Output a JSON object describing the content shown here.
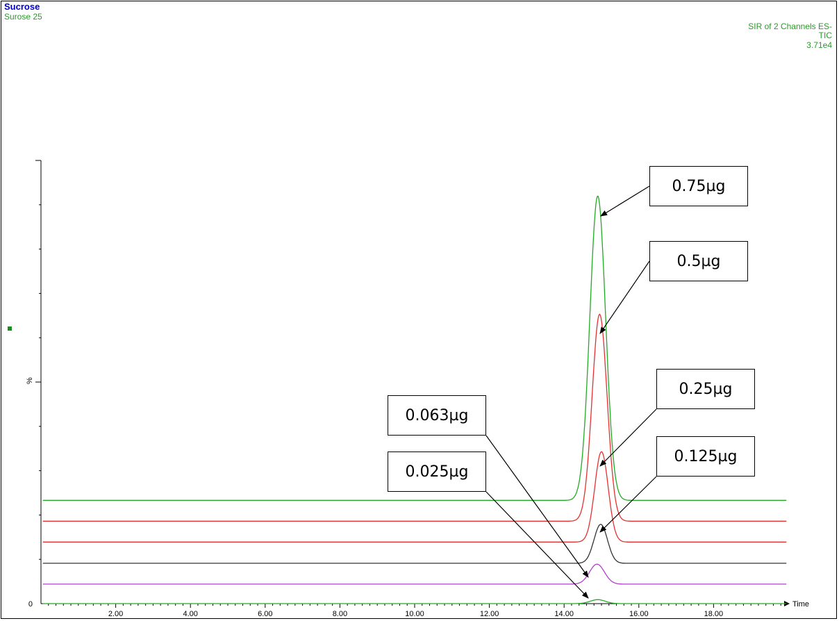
{
  "header": {
    "compound": "Sucrose",
    "sample": "Surose 25",
    "channels": "SIR of 2 Channels ES-",
    "trace": "TIC",
    "intensity": "3.71e4"
  },
  "colors": {
    "green": "#22aa22",
    "red": "#e53030",
    "black": "#333333",
    "purple": "#b040c8",
    "axis": "#000000"
  },
  "chart_data": {
    "type": "line",
    "xlabel": "Time",
    "ylabel": "%",
    "xlim": [
      0,
      20
    ],
    "ylim": [
      0,
      100
    ],
    "x_ticks": [
      "2.00",
      "4.00",
      "6.00",
      "8.00",
      "10.00",
      "12.00",
      "14.00",
      "16.00",
      "18.00"
    ],
    "y_ticks": [
      "0"
    ],
    "series": [
      {
        "name": "0.75µg",
        "color": "green",
        "baseline": 23.3,
        "peak_time": 14.9,
        "peak_value": 92.0,
        "width": 0.21
      },
      {
        "name": "0.5µg",
        "color": "red",
        "baseline": 18.6,
        "peak_time": 14.95,
        "peak_value": 65.3,
        "width": 0.2
      },
      {
        "name": "0.25µg",
        "color": "red",
        "baseline": 13.9,
        "peak_time": 15.0,
        "peak_value": 34.3,
        "width": 0.18
      },
      {
        "name": "0.125µg",
        "color": "black",
        "baseline": 9.1,
        "peak_time": 14.98,
        "peak_value": 17.9,
        "width": 0.18
      },
      {
        "name": "0.063µg",
        "color": "purple",
        "baseline": 4.4,
        "peak_time": 14.88,
        "peak_value": 8.9,
        "width": 0.2
      },
      {
        "name": "0.025µg",
        "color": "green",
        "baseline": 0.0,
        "peak_time": 14.9,
        "peak_value": 0.9,
        "width": 0.2
      }
    ],
    "annotations": [
      {
        "label": "0.75µg",
        "series": 0
      },
      {
        "label": "0.5µg",
        "series": 1
      },
      {
        "label": "0.25µg",
        "series": 2
      },
      {
        "label": "0.125µg",
        "series": 3
      },
      {
        "label": "0.063µg",
        "series": 4
      },
      {
        "label": "0.025µg",
        "series": 5
      }
    ]
  }
}
